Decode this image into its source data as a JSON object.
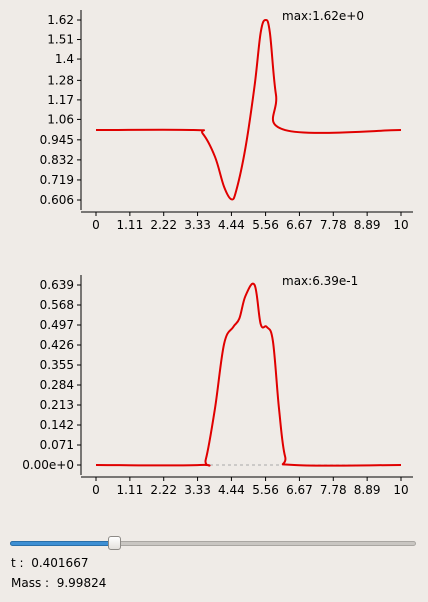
{
  "plots": [
    {
      "max_label": "max:1.62e+0",
      "y_ticks": [
        {
          "v": 1.62,
          "label": "1.62"
        },
        {
          "v": 1.51,
          "label": "1.51"
        },
        {
          "v": 1.4,
          "label": "1.4"
        },
        {
          "v": 1.28,
          "label": "1.28"
        },
        {
          "v": 1.17,
          "label": "1.17"
        },
        {
          "v": 1.06,
          "label": "1.06"
        },
        {
          "v": 0.945,
          "label": "0.945"
        },
        {
          "v": 0.832,
          "label": "0.832"
        },
        {
          "v": 0.719,
          "label": "0.719"
        },
        {
          "v": 0.606,
          "label": "0.606"
        }
      ]
    },
    {
      "max_label": "max:6.39e-1",
      "y_ticks": [
        {
          "v": 0.639,
          "label": "0.639"
        },
        {
          "v": 0.568,
          "label": "0.568"
        },
        {
          "v": 0.497,
          "label": "0.497"
        },
        {
          "v": 0.426,
          "label": "0.426"
        },
        {
          "v": 0.355,
          "label": "0.355"
        },
        {
          "v": 0.284,
          "label": "0.284"
        },
        {
          "v": 0.213,
          "label": "0.213"
        },
        {
          "v": 0.142,
          "label": "0.142"
        },
        {
          "v": 0.071,
          "label": "0.071"
        },
        {
          "v": 0,
          "label": "0.00e+0"
        }
      ]
    }
  ],
  "x_ticks": [
    {
      "v": 0,
      "label": "0"
    },
    {
      "v": 1.11,
      "label": "1.11"
    },
    {
      "v": 2.22,
      "label": "2.22"
    },
    {
      "v": 3.33,
      "label": "3.33"
    },
    {
      "v": 4.44,
      "label": "4.44"
    },
    {
      "v": 5.56,
      "label": "5.56"
    },
    {
      "v": 6.67,
      "label": "6.67"
    },
    {
      "v": 7.78,
      "label": "7.78"
    },
    {
      "v": 8.89,
      "label": "8.89"
    },
    {
      "v": 10,
      "label": "10"
    }
  ],
  "colors": {
    "curve": "#e00000",
    "fill": "#3d8fd4"
  },
  "chart_data": [
    {
      "type": "line",
      "xlim": [
        0,
        10
      ],
      "ylim": [
        0.606,
        1.62
      ],
      "series": [
        {
          "x": [
            0,
            3.2,
            3.5,
            3.9,
            4.2,
            4.44,
            4.6,
            4.9,
            5.2,
            5.4,
            5.56,
            5.7,
            5.9,
            6.2,
            10
          ],
          "y": [
            1.0,
            1.0,
            0.98,
            0.85,
            0.68,
            0.61,
            0.66,
            0.9,
            1.25,
            1.55,
            1.62,
            1.55,
            1.2,
            1.0,
            1.0
          ]
        }
      ]
    },
    {
      "type": "line",
      "xlim": [
        0,
        10
      ],
      "ylim": [
        0,
        0.639
      ],
      "series": [
        {
          "x": [
            0,
            3.4,
            3.6,
            3.9,
            4.2,
            4.5,
            4.7,
            4.9,
            5.2,
            5.4,
            5.6,
            5.8,
            6.0,
            6.2,
            6.5,
            10
          ],
          "y": [
            0,
            0,
            0.02,
            0.2,
            0.43,
            0.49,
            0.52,
            0.6,
            0.639,
            0.5,
            0.49,
            0.44,
            0.2,
            0.03,
            0,
            0
          ]
        }
      ]
    }
  ],
  "slider": {
    "value": 0.25
  },
  "t_label": "t :",
  "t_value": "0.401667",
  "mass_label": "Mass :",
  "mass_value": "9.99824"
}
